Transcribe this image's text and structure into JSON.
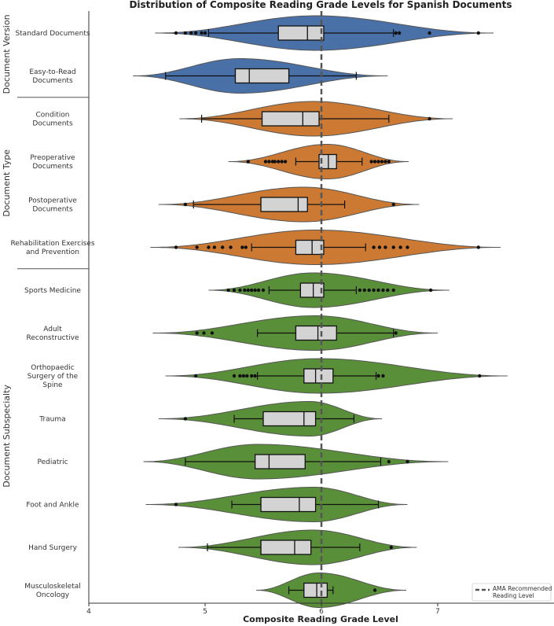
{
  "chart_data": {
    "type": "violin",
    "title": "Distribution of Composite Reading Grade Levels for Spanish Documents",
    "xlabel": "Composite Reading Grade Level",
    "xlim": [
      4.0,
      8.0
    ],
    "xticks": [
      "4",
      "5",
      "6",
      "7"
    ],
    "reference_line": {
      "value": 6,
      "label": "AMA Recommended Reading Level",
      "style": "dashed"
    },
    "legend_position": "bottom-right",
    "colors": {
      "version": "#4a70a8",
      "type": "#cc7a33",
      "specialty": "#5a8f3a",
      "box": "#d3d3d3"
    },
    "groups": [
      {
        "label": "Document Version",
        "color": "#4a70a8",
        "categories": [
          "Standard Documents",
          "Easy-to-Read Documents"
        ]
      },
      {
        "label": "Document Type",
        "color": "#cc7a33",
        "categories": [
          "Condition Documents",
          "Preoperative Documents",
          "Postoperative Documents",
          "Rehabilitation Exercises and Prevention"
        ]
      },
      {
        "label": "Document Subspecialty",
        "color": "#5a8f3a",
        "categories": [
          "Sports Medicine",
          "Adult Reconstructive",
          "Orthopaedic Surgery of the Spine",
          "Trauma",
          "Pediatric",
          "Foot and Ankle",
          "Hand Surgery",
          "Musculoskeletal Oncology"
        ]
      }
    ],
    "series": [
      {
        "category": "Standard Documents",
        "lines": [
          "Standard Documents"
        ],
        "group": 0,
        "violin_range": [
          4.57,
          7.48
        ],
        "peak": 5.95,
        "box": [
          5.63,
          5.88,
          6.02
        ],
        "whiskers": [
          5.03,
          6.62
        ],
        "outliers": [
          4.75,
          4.83,
          4.88,
          4.92,
          4.97,
          5.0,
          6.64,
          6.67,
          6.93,
          7.35
        ]
      },
      {
        "category": "Easy-to-Read Documents",
        "lines": [
          "Easy-to-Read",
          "Documents"
        ],
        "group": 0,
        "violin_range": [
          4.38,
          6.57
        ],
        "peak": 5.3,
        "box": [
          5.26,
          5.38,
          5.72
        ],
        "whiskers": [
          4.66,
          6.3
        ],
        "outliers": []
      },
      {
        "category": "Condition Documents",
        "lines": [
          "Condition",
          "Documents"
        ],
        "group": 1,
        "violin_range": [
          4.78,
          7.13
        ],
        "peak": 5.93,
        "box": [
          5.49,
          5.84,
          5.98
        ],
        "whiskers": [
          4.97,
          6.58
        ],
        "outliers": [
          6.93
        ]
      },
      {
        "category": "Preoperative Documents",
        "lines": [
          "Preoperative",
          "Documents"
        ],
        "group": 1,
        "violin_range": [
          5.2,
          6.75
        ],
        "peak": 6.05,
        "box": [
          5.98,
          6.06,
          6.13
        ],
        "whiskers": [
          5.78,
          6.35
        ],
        "outliers": [
          5.37,
          5.52,
          5.55,
          5.58,
          5.6,
          5.63,
          5.66,
          5.69,
          6.43,
          6.46,
          6.49,
          6.52,
          6.55,
          6.58
        ]
      },
      {
        "category": "Postoperative Documents",
        "lines": [
          "Postoperative",
          "Documents"
        ],
        "group": 1,
        "violin_range": [
          4.6,
          6.84
        ],
        "peak": 5.85,
        "box": [
          5.48,
          5.8,
          5.88
        ],
        "whiskers": [
          4.9,
          6.2
        ],
        "outliers": [
          4.83,
          6.62
        ]
      },
      {
        "category": "Rehabilitation Exercises and Prevention",
        "lines": [
          "Rehabilitation Exercises",
          "and Prevention"
        ],
        "group": 1,
        "violin_range": [
          4.53,
          7.54
        ],
        "peak": 5.95,
        "box": [
          5.78,
          5.92,
          6.02
        ],
        "whiskers": [
          5.4,
          6.38
        ],
        "outliers": [
          4.75,
          4.93,
          5.03,
          5.08,
          5.15,
          5.22,
          5.32,
          5.35,
          6.45,
          6.5,
          6.55,
          6.62,
          6.68,
          6.74,
          7.35
        ]
      },
      {
        "category": "Sports Medicine",
        "lines": [
          "Sports Medicine"
        ],
        "group": 2,
        "violin_range": [
          5.03,
          7.1
        ],
        "peak": 5.93,
        "box": [
          5.82,
          5.93,
          6.02
        ],
        "whiskers": [
          5.55,
          6.3
        ],
        "outliers": [
          5.2,
          5.25,
          5.3,
          5.34,
          5.37,
          5.4,
          5.43,
          5.46,
          5.5,
          6.33,
          6.37,
          6.41,
          6.45,
          6.49,
          6.53,
          6.57,
          6.62,
          6.94
        ]
      },
      {
        "category": "Adult Reconstructive",
        "lines": [
          "Adult",
          "Reconstructive"
        ],
        "group": 2,
        "violin_range": [
          4.55,
          7.0
        ],
        "peak": 5.95,
        "box": [
          5.78,
          5.97,
          6.13
        ],
        "whiskers": [
          5.45,
          6.62
        ],
        "outliers": [
          4.93,
          4.99,
          5.06,
          6.64
        ]
      },
      {
        "category": "Orthopaedic Surgery of the Spine",
        "lines": [
          "Orthopaedic",
          "Surgery of the",
          "Spine"
        ],
        "group": 2,
        "violin_range": [
          4.66,
          7.6
        ],
        "peak": 5.98,
        "box": [
          5.85,
          5.95,
          6.1
        ],
        "whiskers": [
          5.45,
          6.47
        ],
        "outliers": [
          4.92,
          5.25,
          5.3,
          5.33,
          5.36,
          5.4,
          5.43,
          6.49,
          6.53,
          7.36
        ]
      },
      {
        "category": "Trauma",
        "lines": [
          "Trauma"
        ],
        "group": 2,
        "violin_range": [
          4.6,
          6.52
        ],
        "peak": 5.9,
        "box": [
          5.5,
          5.85,
          5.95
        ],
        "whiskers": [
          5.25,
          6.28
        ],
        "outliers": [
          4.83
        ]
      },
      {
        "category": "Pediatric",
        "lines": [
          "Pediatric"
        ],
        "group": 2,
        "violin_range": [
          4.47,
          7.09
        ],
        "peak": 5.45,
        "box": [
          5.43,
          5.55,
          5.86
        ],
        "whiskers": [
          4.83,
          6.51
        ],
        "outliers": [
          6.58,
          6.74
        ]
      },
      {
        "category": "Foot and Ankle",
        "lines": [
          "Foot and Ankle"
        ],
        "group": 2,
        "violin_range": [
          4.49,
          6.74
        ],
        "peak": 5.93,
        "box": [
          5.48,
          5.81,
          5.95
        ],
        "whiskers": [
          5.23,
          6.49
        ],
        "outliers": [
          4.75
        ]
      },
      {
        "category": "Hand Surgery",
        "lines": [
          "Hand Surgery"
        ],
        "group": 2,
        "violin_range": [
          4.77,
          6.82
        ],
        "peak": 5.93,
        "box": [
          5.48,
          5.77,
          5.91
        ],
        "whiskers": [
          5.02,
          6.33
        ],
        "outliers": [
          6.6
        ]
      },
      {
        "category": "Musculoskeletal Oncology",
        "lines": [
          "Musculoskeletal",
          "Oncology"
        ],
        "group": 2,
        "violin_range": [
          5.44,
          6.73
        ],
        "peak": 5.98,
        "box": [
          5.85,
          5.96,
          6.05
        ],
        "whiskers": [
          5.72,
          6.1
        ],
        "outliers": [
          6.46
        ]
      }
    ]
  }
}
